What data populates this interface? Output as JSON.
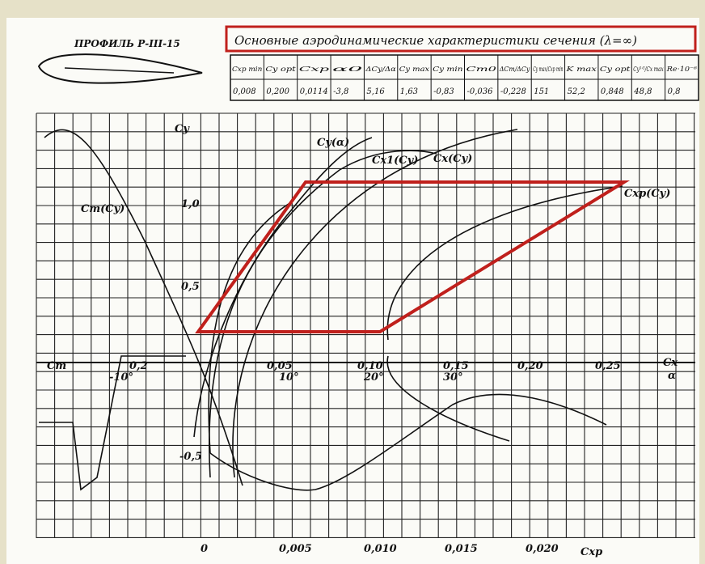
{
  "profile_label": "ПРОФИЛЬ Р-III-15",
  "header": {
    "title": "Основные аэродинамические характеристики сечения (λ=∞)"
  },
  "table": {
    "headers": [
      "Cxp min",
      "Cy opt",
      "Cxp",
      "α0",
      "ΔCy/Δα",
      "Cy max",
      "Cy min",
      "Cm0",
      "ΔCm/ΔCy",
      "Cy max/Cxp min",
      "K max",
      "Cy opt",
      "Cy³ᐟ²/Cx max",
      "Re·10⁻⁶"
    ],
    "rows": [
      [
        "0,008",
        "0,200",
        "0,0114",
        "-3,8",
        "5,16",
        "1,63",
        "-0,83",
        "-0,036",
        "-0,228",
        "151",
        "52,2",
        "0,848",
        "48,8",
        "0,8"
      ]
    ]
  },
  "axes": {
    "cy_label": "Cy",
    "cy_ticks": [
      "1,0",
      "0,5",
      "-0,5"
    ],
    "cm_label": "Cm",
    "cm_tick": "0,2",
    "cx_ticks": [
      "0,05",
      "0,10",
      "0,15",
      "0,20",
      "0,25"
    ],
    "cx_label": "Cx",
    "alpha_ticks": [
      "-10°",
      "10°",
      "20°",
      "30°"
    ],
    "alpha_label": "α",
    "cxp_ticks": [
      "0",
      "0,005",
      "0,010",
      "0,015",
      "0,020"
    ],
    "cxp_label": "Cxp"
  },
  "curve_labels": [
    "Cy(α)",
    "Cx1(Cy)",
    "Cx(Cy)",
    "Cxp(Cy)",
    "Cm(Cy)"
  ]
}
